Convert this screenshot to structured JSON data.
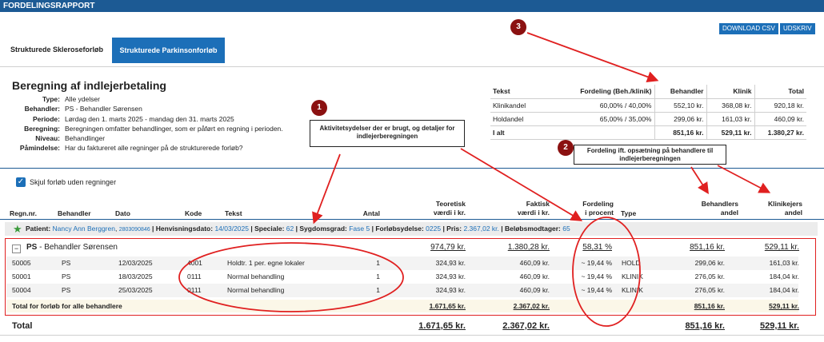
{
  "titlebar": "FORDELINGSRAPPORT",
  "tabs": [
    "Strukturede Skleroseforløb",
    "Strukturede Parkinsonforløb"
  ],
  "buttons": {
    "download": "DOWNLOAD CSV",
    "print": "UDSKRIV"
  },
  "heading": "Beregning af indlejerbetaling",
  "info": [
    {
      "label": "Type:",
      "value": "Alle ydelser"
    },
    {
      "label": "Behandler:",
      "value": "PS - Behandler Sørensen"
    },
    {
      "label": "Periode:",
      "value": "Lørdag den 1. marts 2025 - mandag den 31. marts 2025"
    },
    {
      "label": "Beregning:",
      "value": "Beregningen omfatter behandlinger, som er påført en regning i perioden."
    },
    {
      "label": "Niveau:",
      "value": "Behandlinger"
    },
    {
      "label": "Påmindelse:",
      "value": "Har du faktureret alle regninger på de strukturerede forløb?"
    }
  ],
  "summary": {
    "headers": [
      "Tekst",
      "Fordeling (Beh./klinik)",
      "Behandler",
      "Klinik",
      "Total"
    ],
    "rows": [
      [
        "Klinikandel",
        "60,00% / 40,00%",
        "552,10 kr.",
        "368,08 kr.",
        "920,18 kr."
      ],
      [
        "Holdandel",
        "65,00% / 35,00%",
        "299,06 kr.",
        "161,03 kr.",
        "460,09 kr."
      ]
    ],
    "total": [
      "I alt",
      "",
      "851,16 kr.",
      "529,11 kr.",
      "1.380,27 kr."
    ]
  },
  "callouts": {
    "c1": "Aktivitetsydelser der er brugt, og detaljer for indlejerberegningen",
    "c2": "Fordeling ift. opsætning på behandlere til indlejerberegningen",
    "n1": "1",
    "n2": "2",
    "n3": "3"
  },
  "checkbox_label": "Skjul forløb uden regninger",
  "columns": {
    "regnr": "Regn.nr.",
    "behandler": "Behandler",
    "dato": "Dato",
    "kode": "Kode",
    "tekst": "Tekst",
    "antal": "Antal",
    "teoretisk": "Teoretisk\nværdi i kr.",
    "faktisk": "Faktisk\nværdi i kr.",
    "fordeling": "Fordeling\ni procent",
    "type": "Type",
    "behandlers": "Behandlers\nandel",
    "klinikejers": "Klinikejers\nandel"
  },
  "patient": {
    "prefix": "Patient: ",
    "name": "Nancy Ann Berggren",
    "cpr": "2803090846",
    "henvisning_label": " | Henvisningsdato: ",
    "henvisning": "14/03/2025",
    "speciale_label": " | Speciale: ",
    "speciale": "62",
    "sygdom_label": " | Sygdomsgrad: ",
    "sygdom": "Fase 5",
    "forlob_label": " | Forløbsydelse: ",
    "forlob": "0225",
    "pris_label": " | Pris: ",
    "pris": "2.367,02 kr.",
    "modtager_label": " | Beløbsmodtager: ",
    "modtager": "65"
  },
  "group": {
    "name": "PS",
    "desc": " - Behandler Sørensen",
    "teoretisk": "974,79 kr.",
    "faktisk": "1.380,28 kr.",
    "fordeling": "58,31 %",
    "behandler": "851,16 kr.",
    "klinik": "529,11 kr."
  },
  "rows": [
    {
      "regnr": "50005",
      "beh": "PS",
      "dato": "12/03/2025",
      "kode": "4001",
      "tekst": "Holdtr. 1 per. egne lokaler",
      "antal": "1",
      "teo": "324,93 kr.",
      "fak": "460,09 kr.",
      "ford": "~ 19,44 %",
      "type": "HOLD",
      "behand": "299,06 kr.",
      "klin": "161,03 kr."
    },
    {
      "regnr": "50001",
      "beh": "PS",
      "dato": "18/03/2025",
      "kode": "0111",
      "tekst": "Normal behandling",
      "antal": "1",
      "teo": "324,93 kr.",
      "fak": "460,09 kr.",
      "ford": "~ 19,44 %",
      "type": "KLINIK",
      "behand": "276,05 kr.",
      "klin": "184,04 kr."
    },
    {
      "regnr": "50004",
      "beh": "PS",
      "dato": "25/03/2025",
      "kode": "0111",
      "tekst": "Normal behandling",
      "antal": "1",
      "teo": "324,93 kr.",
      "fak": "460,09 kr.",
      "ford": "~ 19,44 %",
      "type": "KLINIK",
      "behand": "276,05 kr.",
      "klin": "184,04 kr."
    }
  ],
  "forlob_total": {
    "label": "Total for forløb for alle behandlere",
    "teo": "1.671,65 kr.",
    "fak": "2.367,02 kr.",
    "behand": "851,16 kr.",
    "klin": "529,11 kr."
  },
  "grand_total": {
    "label": "Total",
    "teo": "1.671,65 kr.",
    "fak": "2.367,02 kr.",
    "behand": "851,16 kr.",
    "klin": "529,11 kr."
  },
  "colors": {
    "brand": "#1c5a94",
    "accent": "#1c6fb8",
    "annotation": "#e02020",
    "marker": "#8b1111"
  }
}
